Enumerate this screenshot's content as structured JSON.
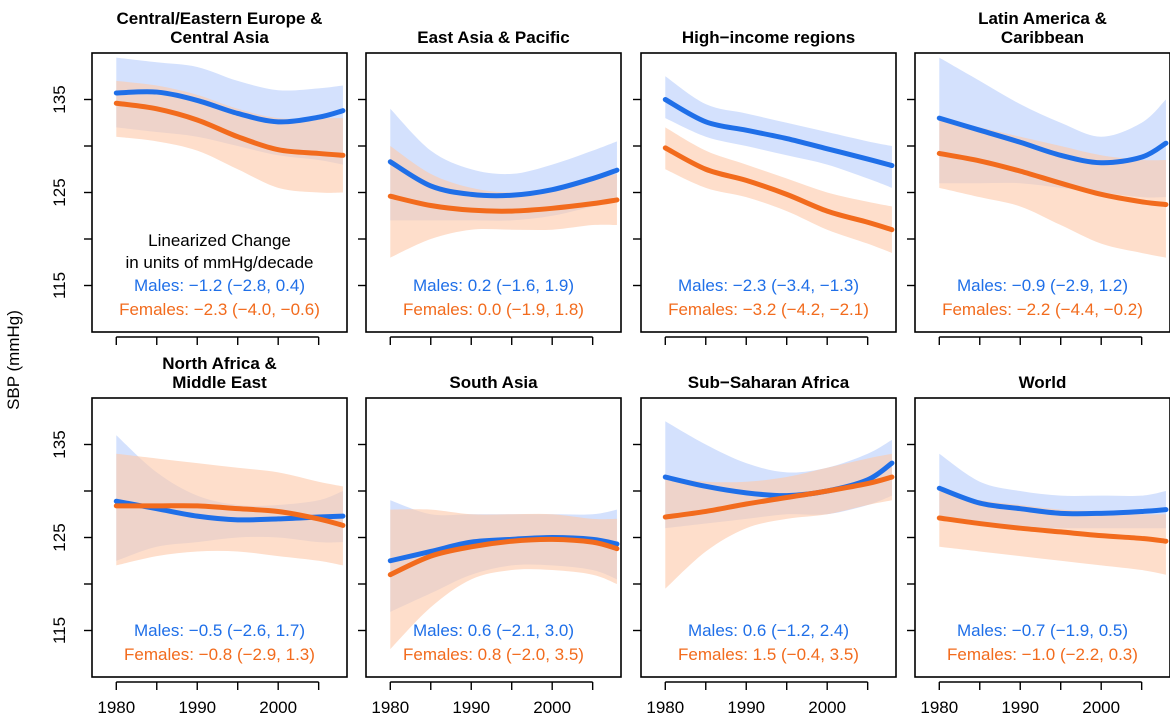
{
  "ylabel": "SBP (mmHg)",
  "colors": {
    "males": "#1f6fe8",
    "females": "#f26b1d",
    "males_band": "#b9cffb",
    "females_band": "#fdc9ab"
  },
  "note_lines": [
    "Linearized Change",
    "in units of mmHg/decade"
  ],
  "chart_data": [
    {
      "type": "line",
      "title": [
        "Central/Eastern Europe &",
        "Central Asia"
      ],
      "x": [
        1980,
        1985,
        1990,
        1995,
        2000,
        2005,
        2008
      ],
      "series": [
        {
          "name": "Males",
          "values": [
            135.7,
            135.8,
            134.9,
            133.5,
            132.6,
            133.1,
            133.8
          ],
          "lower": [
            132.0,
            131.5,
            131.0,
            130.0,
            129.0,
            128.5,
            128.0
          ],
          "upper": [
            139.5,
            139.0,
            138.5,
            137.0,
            136.0,
            136.2,
            136.5
          ]
        },
        {
          "name": "Females",
          "values": [
            134.6,
            134.0,
            132.8,
            131.0,
            129.6,
            129.2,
            129.0
          ],
          "lower": [
            131.0,
            130.5,
            129.5,
            127.5,
            125.5,
            125.0,
            125.0
          ],
          "upper": [
            137.0,
            136.5,
            135.5,
            134.0,
            133.0,
            133.0,
            133.0
          ]
        }
      ],
      "labels": {
        "males": "Males: −1.2 (−2.8, 0.4)",
        "females": "Females: −2.3 (−4.0, −0.6)"
      }
    },
    {
      "type": "line",
      "title": [
        "East Asia & Pacific"
      ],
      "x": [
        1980,
        1985,
        1990,
        1995,
        2000,
        2005,
        2008
      ],
      "series": [
        {
          "name": "Males",
          "values": [
            128.3,
            125.7,
            124.8,
            124.7,
            125.3,
            126.5,
            127.4
          ],
          "lower": [
            122.0,
            122.0,
            122.0,
            122.0,
            122.5,
            123.5,
            124.0
          ],
          "upper": [
            134.0,
            129.5,
            127.5,
            127.0,
            128.0,
            129.5,
            130.5
          ]
        },
        {
          "name": "Females",
          "values": [
            124.6,
            123.6,
            123.1,
            123.0,
            123.3,
            123.8,
            124.2
          ],
          "lower": [
            118.0,
            120.0,
            121.0,
            121.0,
            121.0,
            121.5,
            121.5
          ],
          "upper": [
            130.0,
            127.0,
            125.5,
            125.0,
            125.5,
            126.5,
            127.0
          ]
        }
      ],
      "labels": {
        "males": "Males: 0.2 (−1.6, 1.9)",
        "females": "Females: 0.0 (−1.9, 1.8)"
      }
    },
    {
      "type": "line",
      "title": [
        "High−income regions"
      ],
      "x": [
        1980,
        1985,
        1990,
        1995,
        2000,
        2005,
        2008
      ],
      "series": [
        {
          "name": "Males",
          "values": [
            135.0,
            132.6,
            131.7,
            130.8,
            129.7,
            128.6,
            127.9
          ],
          "lower": [
            133.0,
            131.0,
            130.0,
            129.0,
            128.0,
            126.5,
            125.5
          ],
          "upper": [
            137.5,
            134.5,
            133.5,
            132.5,
            131.5,
            130.5,
            130.0
          ]
        },
        {
          "name": "Females",
          "values": [
            129.8,
            127.5,
            126.3,
            124.8,
            123.0,
            121.8,
            121.0
          ],
          "lower": [
            127.5,
            125.5,
            124.5,
            123.0,
            121.0,
            119.5,
            118.5
          ],
          "upper": [
            132.0,
            129.5,
            128.0,
            126.5,
            125.0,
            124.0,
            123.5
          ]
        }
      ],
      "labels": {
        "males": "Males: −2.3 (−3.4, −1.3)",
        "females": "Females: −3.2 (−4.2, −2.1)"
      }
    },
    {
      "type": "line",
      "title": [
        "Latin America &",
        "Caribbean"
      ],
      "x": [
        1980,
        1985,
        1990,
        1995,
        2000,
        2005,
        2008
      ],
      "series": [
        {
          "name": "Males",
          "values": [
            133.0,
            131.7,
            130.4,
            129.0,
            128.2,
            128.8,
            130.3
          ],
          "lower": [
            126.0,
            126.0,
            126.0,
            125.5,
            125.0,
            124.5,
            124.5
          ],
          "upper": [
            139.5,
            137.0,
            134.5,
            132.5,
            131.0,
            132.5,
            135.0
          ]
        },
        {
          "name": "Females",
          "values": [
            129.2,
            128.4,
            127.3,
            126.0,
            124.8,
            124.0,
            123.7
          ],
          "lower": [
            125.5,
            124.5,
            123.5,
            121.5,
            119.5,
            118.5,
            118.0
          ],
          "upper": [
            133.0,
            132.0,
            131.0,
            130.0,
            129.0,
            128.5,
            128.5
          ]
        }
      ],
      "labels": {
        "males": "Males: −0.9 (−2.9, 1.2)",
        "females": "Females: −2.2 (−4.4, −0.2)"
      }
    },
    {
      "type": "line",
      "title": [
        "North Africa &",
        "Middle East"
      ],
      "x": [
        1980,
        1985,
        1990,
        1995,
        2000,
        2005,
        2008
      ],
      "series": [
        {
          "name": "Males",
          "values": [
            128.9,
            128.1,
            127.3,
            126.9,
            127.0,
            127.2,
            127.3
          ],
          "lower": [
            122.5,
            124.0,
            124.5,
            125.0,
            125.0,
            124.5,
            124.5
          ],
          "upper": [
            136.0,
            132.0,
            129.5,
            128.5,
            128.5,
            129.0,
            130.0
          ]
        },
        {
          "name": "Females",
          "values": [
            128.4,
            128.4,
            128.4,
            128.1,
            127.8,
            127.0,
            126.3
          ],
          "lower": [
            122.0,
            123.0,
            123.5,
            123.5,
            123.0,
            122.5,
            122.0
          ],
          "upper": [
            134.0,
            133.5,
            133.0,
            132.5,
            132.0,
            131.0,
            130.5
          ]
        }
      ],
      "labels": {
        "males": "Males: −0.5 (−2.6, 1.7)",
        "females": "Females: −0.8 (−2.9, 1.3)"
      }
    },
    {
      "type": "line",
      "title": [
        "South Asia"
      ],
      "x": [
        1980,
        1985,
        1990,
        1995,
        2000,
        2005,
        2008
      ],
      "series": [
        {
          "name": "Males",
          "values": [
            122.5,
            123.5,
            124.5,
            124.8,
            125.0,
            124.8,
            124.3
          ],
          "lower": [
            117.0,
            119.0,
            121.0,
            122.0,
            122.0,
            121.5,
            120.5
          ],
          "upper": [
            129.0,
            127.5,
            127.5,
            127.5,
            127.5,
            127.5,
            128.0
          ]
        },
        {
          "name": "Females",
          "values": [
            121.0,
            123.0,
            124.0,
            124.6,
            124.8,
            124.5,
            123.8
          ],
          "lower": [
            113.0,
            117.5,
            120.5,
            121.5,
            121.5,
            121.0,
            120.0
          ],
          "upper": [
            128.0,
            128.0,
            127.5,
            127.5,
            127.5,
            127.0,
            127.0
          ]
        }
      ],
      "labels": {
        "males": "Males: 0.6 (−2.1, 3.0)",
        "females": "Females: 0.8 (−2.0, 3.5)"
      }
    },
    {
      "type": "line",
      "title": [
        "Sub−Saharan Africa"
      ],
      "x": [
        1980,
        1985,
        1990,
        1995,
        2000,
        2005,
        2008
      ],
      "series": [
        {
          "name": "Males",
          "values": [
            131.5,
            130.5,
            129.8,
            129.5,
            130.0,
            131.2,
            133.0
          ],
          "lower": [
            126.0,
            126.5,
            127.0,
            127.5,
            127.5,
            128.5,
            129.5
          ],
          "upper": [
            137.5,
            135.0,
            133.0,
            132.0,
            132.5,
            134.0,
            135.5
          ]
        },
        {
          "name": "Females",
          "values": [
            127.2,
            127.8,
            128.6,
            129.3,
            130.0,
            130.8,
            131.5
          ],
          "lower": [
            119.5,
            123.5,
            126.0,
            127.0,
            127.5,
            128.5,
            129.0
          ],
          "upper": [
            131.5,
            131.0,
            131.0,
            131.5,
            132.5,
            133.5,
            134.0
          ]
        }
      ],
      "labels": {
        "males": "Males: 0.6 (−1.2, 2.4)",
        "females": "Females: 1.5 (−0.4, 3.5)"
      }
    },
    {
      "type": "line",
      "title": [
        "World"
      ],
      "x": [
        1980,
        1985,
        1990,
        1995,
        2000,
        2005,
        2008
      ],
      "series": [
        {
          "name": "Males",
          "values": [
            130.3,
            128.7,
            128.1,
            127.6,
            127.6,
            127.8,
            128.0
          ],
          "lower": [
            127.0,
            126.5,
            126.0,
            126.0,
            126.0,
            126.0,
            126.0
          ],
          "upper": [
            134.0,
            131.0,
            130.0,
            129.5,
            129.5,
            129.5,
            130.0
          ]
        },
        {
          "name": "Females",
          "values": [
            127.1,
            126.5,
            126.0,
            125.6,
            125.2,
            124.9,
            124.6
          ],
          "lower": [
            124.0,
            123.5,
            123.0,
            122.5,
            122.0,
            121.5,
            121.0
          ],
          "upper": [
            130.0,
            129.0,
            128.5,
            128.0,
            127.8,
            127.5,
            127.5
          ]
        }
      ],
      "labels": {
        "males": "Males: −0.7 (−1.9, 0.5)",
        "females": "Females: −1.0 (−2.2, 0.3)"
      }
    }
  ],
  "axes": {
    "ylim": [
      110,
      140
    ],
    "yticks": [
      115,
      120,
      125,
      130,
      135
    ],
    "ytick_labels": [
      "115",
      "",
      "125",
      "",
      "135"
    ],
    "xlim": [
      1977,
      2008.5
    ],
    "xticks": [
      1980,
      1985,
      1990,
      1995,
      2000,
      2005
    ],
    "xtick_labels": [
      "1980",
      "",
      "1990",
      "",
      "2000",
      ""
    ]
  }
}
